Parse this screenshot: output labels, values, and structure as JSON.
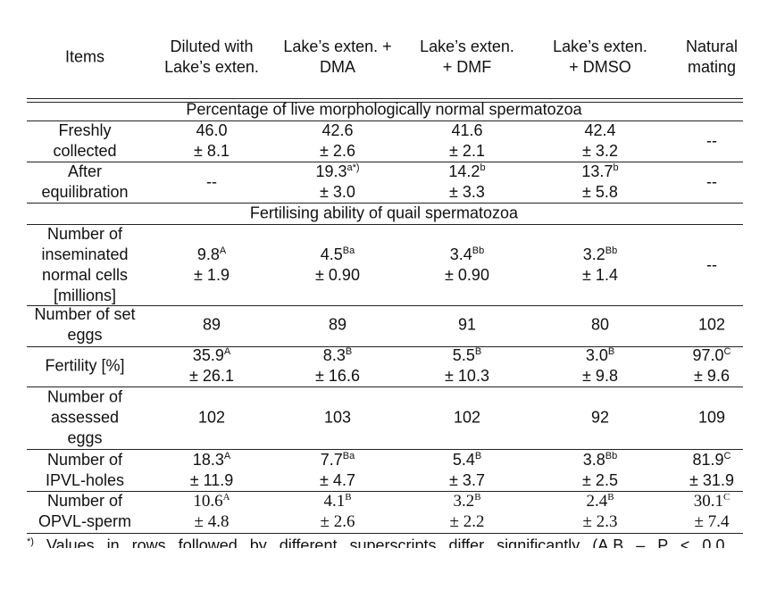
{
  "header": {
    "columns": [
      [
        "Items"
      ],
      [
        "Diluted with",
        "Lake’s exten."
      ],
      [
        "Lake’s exten. +",
        "DMA"
      ],
      [
        "Lake’s exten.",
        "+ DMF"
      ],
      [
        "Lake’s exten.",
        "+ DMSO"
      ],
      [
        "Natural",
        "mating"
      ]
    ]
  },
  "sections": [
    {
      "title": "Percentage of live morphologically normal spermatozoa",
      "rows": [
        {
          "label": [
            "Freshly",
            "collected"
          ],
          "cells": [
            {
              "value": "46.0",
              "sd": "± 8.1"
            },
            {
              "value": "42.6",
              "sd": "± 2.6"
            },
            {
              "value": "41.6",
              "sd": "± 2.1"
            },
            {
              "value": "42.4",
              "sd": "± 3.2"
            },
            {
              "text": "--"
            }
          ]
        },
        {
          "label": [
            "After",
            "equilibration"
          ],
          "cells": [
            {
              "text": "--"
            },
            {
              "value": "19.3",
              "sup": "a*)",
              "sd": "± 3.0"
            },
            {
              "value": "14.2",
              "sup": "b",
              "sd": "± 3.3"
            },
            {
              "value": "13.7",
              "sup": "b",
              "sd": "± 5.8"
            },
            {
              "text": "--"
            }
          ]
        }
      ]
    },
    {
      "title": "Fertilising ability of quail spermatozoa",
      "rows": [
        {
          "label": [
            "Number of",
            "inseminated",
            "normal cells",
            "[millions]"
          ],
          "cells": [
            {
              "value": "9.8",
              "sup": "A",
              "sd": "± 1.9"
            },
            {
              "value": "4.5",
              "sup": "Ba",
              "sd": "± 0.90"
            },
            {
              "value": "3.4",
              "sup": "Bb",
              "sd": "± 0.90"
            },
            {
              "value": "3.2",
              "sup": "Bb",
              "sd": "± 1.4"
            },
            {
              "text": "--"
            }
          ]
        },
        {
          "label": [
            "Number of set",
            "eggs"
          ],
          "cells": [
            {
              "text": "89"
            },
            {
              "text": "89"
            },
            {
              "text": "91"
            },
            {
              "text": "80"
            },
            {
              "text": "102"
            }
          ]
        },
        {
          "label": [
            "Fertility [%]"
          ],
          "cells": [
            {
              "value": "35.9",
              "sup": "A",
              "sd": "± 26.1"
            },
            {
              "value": "8.3",
              "sup": "B",
              "sd": "± 16.6"
            },
            {
              "value": "5.5",
              "sup": "B",
              "sd": "± 10.3"
            },
            {
              "value": "3.0",
              "sup": "B",
              "sd": "± 9.8"
            },
            {
              "value": "97.0",
              "sup": "C",
              "sd": "± 9.6"
            }
          ]
        },
        {
          "label": [
            "Number of",
            "assessed",
            "eggs"
          ],
          "cells": [
            {
              "text": "102"
            },
            {
              "text": "103"
            },
            {
              "text": "102"
            },
            {
              "text": "92"
            },
            {
              "text": "109"
            }
          ]
        },
        {
          "label": [
            "Number of",
            "IPVL-holes"
          ],
          "cells": [
            {
              "value": "18.3",
              "sup": "A",
              "sd": "± 11.9"
            },
            {
              "value": "7.7",
              "sup": "Ba",
              "sd": "± 4.7"
            },
            {
              "value": "5.4",
              "sup": "B",
              "sd": "± 3.7"
            },
            {
              "value": "3.8",
              "sup": "Bb",
              "sd": "± 2.5"
            },
            {
              "value": "81.9",
              "sup": "C",
              "sd": "± 31.9"
            }
          ]
        },
        {
          "label": [
            "Number of",
            "OPVL-sperm"
          ],
          "cells": [
            {
              "value": "10.6",
              "sup": "A",
              "sd": "± 4.8"
            },
            {
              "value": "4.1",
              "sup": "B",
              "sd": "± 2.6"
            },
            {
              "value": "3.2",
              "sup": "B",
              "sd": "± 2.2"
            },
            {
              "value": "2.4",
              "sup": "B",
              "sd": "± 2.3"
            },
            {
              "value": "30.1",
              "sup": "C",
              "sd": "± 7.4"
            }
          ]
        }
      ]
    }
  ],
  "footnote": {
    "mark": "*)",
    "text": "Values in rows followed by different superscripts differ significantly (A,B – P < 0.0"
  }
}
